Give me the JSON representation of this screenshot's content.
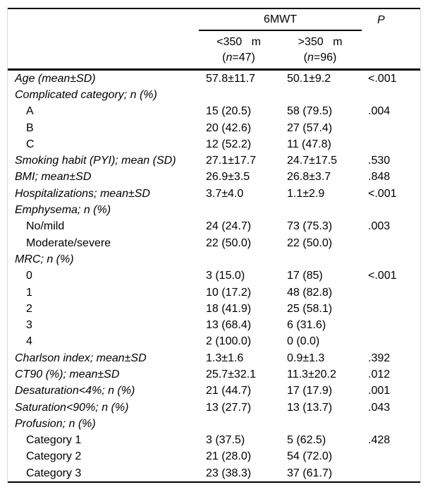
{
  "colors": {
    "background": "#ffffff",
    "text": "#000000",
    "rule": "#000000",
    "frame_border": "#dcdcdc"
  },
  "table": {
    "header": {
      "group_label": "6MWT",
      "p_label": "P",
      "subcols": [
        {
          "line1": "<350 m",
          "n_open": "(",
          "n_sym": "n",
          "n_rest": "=47)"
        },
        {
          "line1": ">350 m",
          "n_open": "(",
          "n_sym": "n",
          "n_rest": "=96)"
        }
      ]
    },
    "rows": [
      {
        "style": "main",
        "label": "Age (mean±SD)",
        "c1": "57.8±11.7",
        "c2": "50.1±9.2",
        "p": "<.001"
      },
      {
        "style": "main",
        "label": "Complicated category; n (%)",
        "c1": "",
        "c2": "",
        "p": ""
      },
      {
        "style": "sub",
        "label": "A",
        "c1": "15 (20.5)",
        "c2": "58 (79.5)",
        "p": ".004"
      },
      {
        "style": "sub",
        "label": "B",
        "c1": "20 (42.6)",
        "c2": "27 (57.4)",
        "p": ""
      },
      {
        "style": "sub",
        "label": "C",
        "c1": "12 (52.2)",
        "c2": "11 (47.8)",
        "p": ""
      },
      {
        "style": "main",
        "label": "Smoking habit (PYI); mean (SD)",
        "c1": "27.1±17.7",
        "c2": "24.7±17.5",
        "p": ".530"
      },
      {
        "style": "main",
        "label": "BMI; mean±SD",
        "c1": "26.9±3.5",
        "c2": "26.8±3.7",
        "p": ".848"
      },
      {
        "style": "main",
        "label": "Hospitalizations; mean±SD",
        "c1": "3.7±4.0",
        "c2": "1.1±2.9",
        "p": "<.001"
      },
      {
        "style": "main",
        "label": "Emphysema; n (%)",
        "c1": "",
        "c2": "",
        "p": ""
      },
      {
        "style": "sub",
        "label": "No/mild",
        "c1": "24 (24.7)",
        "c2": "73 (75.3)",
        "p": ".003"
      },
      {
        "style": "sub",
        "label": "Moderate/severe",
        "c1": "22 (50.0)",
        "c2": "22 (50.0)",
        "p": ""
      },
      {
        "style": "main",
        "label": "MRC; n (%)",
        "c1": "",
        "c2": "",
        "p": ""
      },
      {
        "style": "sub",
        "label": "0",
        "c1": "3 (15.0)",
        "c2": "17 (85)",
        "p": "<.001"
      },
      {
        "style": "sub",
        "label": "1",
        "c1": "10 (17.2)",
        "c2": "48 (82.8)",
        "p": ""
      },
      {
        "style": "sub",
        "label": "2",
        "c1": "18 (41.9)",
        "c2": "25 (58.1)",
        "p": ""
      },
      {
        "style": "sub",
        "label": "3",
        "c1": "13 (68.4)",
        "c2": "6 (31.6)",
        "p": ""
      },
      {
        "style": "sub",
        "label": "4",
        "c1": "2 (100.0)",
        "c2": "0 (0.0)",
        "p": ""
      },
      {
        "style": "main",
        "label": "Charlson index; mean±SD",
        "c1": "1.3±1.6",
        "c2": "0.9±1.3",
        "p": ".392"
      },
      {
        "style": "main",
        "label": "CT90 (%); mean±SD",
        "c1": "25.7±32.1",
        "c2": "11.3±20.2",
        "p": ".012"
      },
      {
        "style": "main",
        "label": "Desaturation<4%; n (%)",
        "c1": "21 (44.7)",
        "c2": "17 (17.9)",
        "p": ".001"
      },
      {
        "style": "main",
        "label": "Saturation<90%; n (%)",
        "c1": "13 (27.7)",
        "c2": "13 (13.7)",
        "p": ".043"
      },
      {
        "style": "main",
        "label": "Profusion; n (%)",
        "c1": "",
        "c2": "",
        "p": ""
      },
      {
        "style": "sub",
        "label": "Category 1",
        "c1": "3 (37.5)",
        "c2": "5 (62.5)",
        "p": ".428"
      },
      {
        "style": "sub",
        "label": "Category 2",
        "c1": "21 (28.0)",
        "c2": "54 (72.0)",
        "p": ""
      },
      {
        "style": "sub",
        "label": "Category 3",
        "c1": "23 (38.3)",
        "c2": "37 (61.7)",
        "p": ""
      }
    ]
  }
}
